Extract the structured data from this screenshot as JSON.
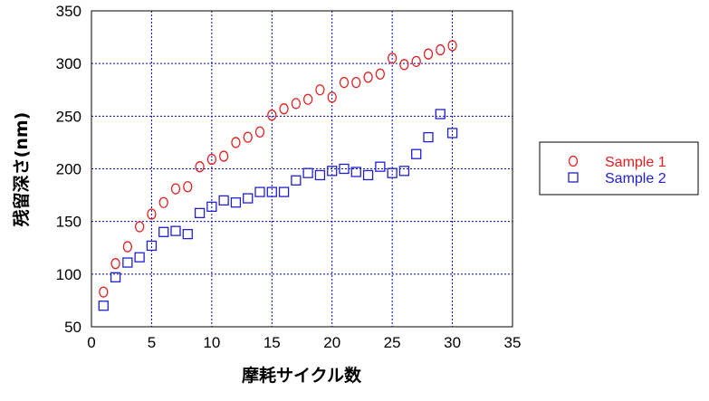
{
  "chart_data": {
    "type": "scatter",
    "title": "",
    "xlabel": "摩耗サイクル数",
    "ylabel": "残留深さ(nm)",
    "xlim": [
      0,
      35
    ],
    "ylim": [
      50,
      350
    ],
    "xticks": [
      0,
      5,
      10,
      15,
      20,
      25,
      30,
      35
    ],
    "yticks": [
      50,
      100,
      150,
      200,
      250,
      300,
      350
    ],
    "grid": true,
    "legend_position": "right",
    "series": [
      {
        "name": "Sample 1",
        "marker": "circle",
        "color": "#e02020",
        "x": [
          1,
          2,
          3,
          4,
          5,
          6,
          7,
          8,
          9,
          10,
          11,
          12,
          13,
          14,
          15,
          16,
          17,
          18,
          19,
          20,
          21,
          22,
          23,
          24,
          25,
          26,
          27,
          28,
          29,
          30
        ],
        "y": [
          83,
          110,
          126,
          145,
          157,
          168,
          181,
          183,
          202,
          209,
          212,
          225,
          230,
          235,
          251,
          257,
          262,
          266,
          275,
          268,
          282,
          282,
          287,
          290,
          305,
          299,
          302,
          309,
          313,
          317
        ]
      },
      {
        "name": "Sample 2",
        "marker": "square",
        "color": "#2020d0",
        "x": [
          1,
          2,
          3,
          4,
          5,
          6,
          7,
          8,
          9,
          10,
          11,
          12,
          13,
          14,
          15,
          16,
          17,
          18,
          19,
          20,
          21,
          22,
          23,
          24,
          25,
          26,
          27,
          28,
          29,
          30
        ],
        "y": [
          70,
          97,
          111,
          116,
          127,
          140,
          141,
          138,
          158,
          164,
          170,
          168,
          172,
          178,
          178,
          178,
          189,
          196,
          194,
          198,
          200,
          197,
          194,
          202,
          196,
          198,
          214,
          230,
          252,
          234
        ]
      }
    ]
  }
}
